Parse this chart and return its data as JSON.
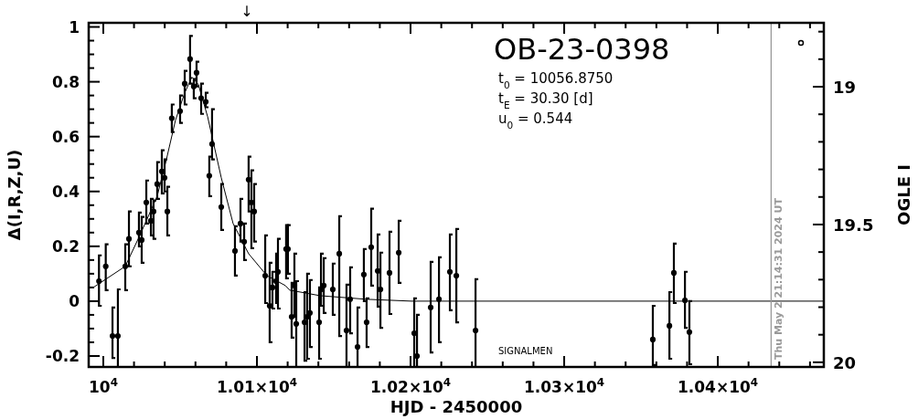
{
  "chart_data": {
    "type": "scatter",
    "title": "OB-23-0398",
    "xlabel": "HJD - 2450000",
    "ylabel": "Δ(I,R,Z,U)",
    "y2label": "OGLE I",
    "xlim": [
      9990.5,
      10469
    ],
    "ylim": [
      -0.24,
      1.015
    ],
    "y2lim": [
      20.017,
      18.768
    ],
    "xticks": [
      {
        "value": 10000,
        "label": "10$^{4}$"
      },
      {
        "value": 10020,
        "label": null
      },
      {
        "value": 10040,
        "label": null
      },
      {
        "value": 10060,
        "label": null
      },
      {
        "value": 10080,
        "label": null
      },
      {
        "value": 10100,
        "label": "1.01×10$^{4}$"
      },
      {
        "value": 10120,
        "label": null
      },
      {
        "value": 10140,
        "label": null
      },
      {
        "value": 10160,
        "label": null
      },
      {
        "value": 10180,
        "label": null
      },
      {
        "value": 10200,
        "label": "1.02×10$^{4}$"
      },
      {
        "value": 10220,
        "label": null
      },
      {
        "value": 10240,
        "label": null
      },
      {
        "value": 10260,
        "label": null
      },
      {
        "value": 10280,
        "label": null
      },
      {
        "value": 10300,
        "label": "1.03×10$^{4}$"
      },
      {
        "value": 10320,
        "label": null
      },
      {
        "value": 10340,
        "label": null
      },
      {
        "value": 10360,
        "label": null
      },
      {
        "value": 10380,
        "label": null
      },
      {
        "value": 10400,
        "label": "1.04×10$^{4}$"
      },
      {
        "value": 10420,
        "label": null
      },
      {
        "value": 10440,
        "label": null
      },
      {
        "value": 10460,
        "label": null
      }
    ],
    "yticks": [
      -0.2,
      {
        "value": -0.15,
        "label": null
      },
      {
        "value": -0.1,
        "label": null
      },
      {
        "value": -0.05,
        "label": null
      },
      0,
      {
        "value": 0.05,
        "label": null
      },
      {
        "value": 0.1,
        "label": null
      },
      {
        "value": 0.15,
        "label": null
      },
      0.2,
      {
        "value": 0.25,
        "label": null
      },
      {
        "value": 0.3,
        "label": null
      },
      {
        "value": 0.35,
        "label": null
      },
      0.4,
      {
        "value": 0.45,
        "label": null
      },
      {
        "value": 0.5,
        "label": null
      },
      {
        "value": 0.55,
        "label": null
      },
      0.6,
      {
        "value": 0.65,
        "label": null
      },
      {
        "value": 0.7,
        "label": null
      },
      {
        "value": 0.75,
        "label": null
      },
      0.8,
      {
        "value": 0.85,
        "label": null
      },
      {
        "value": 0.9,
        "label": null
      },
      {
        "value": 0.95,
        "label": null
      },
      1
    ],
    "y2ticks": [
      {
        "value": 18.8,
        "label": null
      },
      {
        "value": 18.9,
        "label": null
      },
      19,
      {
        "value": 19.1,
        "label": null
      },
      {
        "value": 19.2,
        "label": null
      },
      {
        "value": 19.3,
        "label": null
      },
      {
        "value": 19.4,
        "label": null
      },
      19.5,
      {
        "value": 19.6,
        "label": null
      },
      {
        "value": 19.7,
        "label": null
      },
      {
        "value": 19.8,
        "label": null
      },
      {
        "value": 19.9,
        "label": null
      },
      20
    ],
    "marker": "circle",
    "ref_lines": [
      {
        "axis": "x",
        "value": 10434.7,
        "color": "#999999"
      }
    ],
    "annotations": [
      "t$_{0}$ = 10056.8750",
      "t$_{E}$ = 30.30 [d]",
      "u$_{0}$ = 0.544",
      "SIGNALMEN",
      "↓",
      "Thu May  2 21:14:31 2024 UT"
    ],
    "series": [
      {
        "color": "#000000",
        "x": [
          9997.2,
          10001.6,
          10006.0,
          10009.5,
          10014.3,
          10016.7,
          10023.2,
          10025.0,
          10028.0,
          10031.0,
          10032.7,
          10035.1,
          10038.1,
          10039.9,
          10041.7,
          10044.6,
          10050.0,
          10053.0,
          10056.5,
          10058.9,
          10060.7,
          10063.7,
          10066.7,
          10069.0,
          10070.8,
          10076.8,
          10085.7,
          10089.3,
          10091.7,
          10094.6,
          10096.4,
          10098.2,
          10105.4,
          10108.3,
          10110.1,
          10112.5,
          10113.7,
          10119.0,
          10120.2,
          10122.6,
          10124.4,
          10125.6,
          10131.0,
          10132.7,
          10134.5,
          10140.5,
          10141.7,
          10143.5,
          10149.4,
          10153.6,
          10158.3,
          10160.7,
          10165.5,
          10169.6,
          10171.4,
          10174.4,
          10178.6,
          10180.4,
          10186.3,
          10192.3,
          10202.4,
          10204.2,
          10213.1,
          10218.5,
          10225.6,
          10229.8,
          10242.3,
          10357.7,
          10368.5,
          10371.4,
          10378.6,
          10381.5
        ],
        "values": [
          0.073,
          0.127,
          -0.127,
          -0.127,
          0.127,
          0.227,
          0.25,
          0.223,
          0.36,
          0.293,
          0.327,
          0.427,
          0.473,
          0.45,
          0.327,
          0.667,
          0.693,
          0.793,
          0.883,
          0.783,
          0.833,
          0.74,
          0.727,
          0.457,
          0.573,
          0.343,
          0.183,
          0.283,
          0.217,
          0.443,
          0.36,
          0.327,
          0.093,
          -0.017,
          0.05,
          0.073,
          0.107,
          0.19,
          0.19,
          -0.057,
          0.057,
          -0.083,
          -0.077,
          -0.057,
          -0.043,
          -0.077,
          0.043,
          0.057,
          0.043,
          0.173,
          -0.107,
          0.007,
          -0.167,
          0.097,
          -0.077,
          0.197,
          0.11,
          0.043,
          0.103,
          0.177,
          -0.117,
          -0.2,
          -0.023,
          0.007,
          0.107,
          0.093,
          -0.107,
          -0.14,
          -0.09,
          0.103,
          0.003,
          -0.113
        ],
        "errors": [
          [
            -0.017,
            0.167
          ],
          [
            0.04,
            0.207
          ],
          [
            -0.207,
            -0.023
          ],
          [
            -0.24,
            0.043
          ],
          [
            0.04,
            0.207
          ],
          [
            0.127,
            0.327
          ],
          [
            0.2,
            0.323
          ],
          [
            0.14,
            0.307
          ],
          [
            0.283,
            0.44
          ],
          [
            0.24,
            0.373
          ],
          [
            0.227,
            0.367
          ],
          [
            0.373,
            0.507
          ],
          [
            0.393,
            0.55
          ],
          [
            0.4,
            0.517
          ],
          [
            0.24,
            0.417
          ],
          [
            0.617,
            0.717
          ],
          [
            0.65,
            0.75
          ],
          [
            0.717,
            0.84
          ],
          [
            0.793,
            0.967
          ],
          [
            0.74,
            0.81
          ],
          [
            0.783,
            0.873
          ],
          [
            0.683,
            0.793
          ],
          [
            0.707,
            0.76
          ],
          [
            0.383,
            0.527
          ],
          [
            0.517,
            0.7
          ],
          [
            0.26,
            0.427
          ],
          [
            0.093,
            0.273
          ],
          [
            0.217,
            0.373
          ],
          [
            0.15,
            0.283
          ],
          [
            0.327,
            0.527
          ],
          [
            0.193,
            0.477
          ],
          [
            0.217,
            0.427
          ],
          [
            -0.007,
            0.24
          ],
          [
            -0.15,
            0.14
          ],
          [
            -0.027,
            0.107
          ],
          [
            -0.007,
            0.173
          ],
          [
            -0.027,
            0.227
          ],
          [
            0.083,
            0.277
          ],
          [
            0.1,
            0.277
          ],
          [
            -0.133,
            0.067
          ],
          [
            -0.057,
            0.173
          ],
          [
            -0.24,
            0.073
          ],
          [
            -0.217,
            0.033
          ],
          [
            -0.21,
            0.1
          ],
          [
            -0.167,
            0.077
          ],
          [
            -0.21,
            0.05
          ],
          [
            -0.017,
            0.173
          ],
          [
            -0.043,
            0.157
          ],
          [
            -0.05,
            0.137
          ],
          [
            -0.127,
            0.31
          ],
          [
            -0.24,
            0.06
          ],
          [
            -0.117,
            0.123
          ],
          [
            -0.24,
            -0.023
          ],
          [
            0,
            0.19
          ],
          [
            -0.167,
            0.01
          ],
          [
            0.057,
            0.337
          ],
          [
            -0.02,
            0.243
          ],
          [
            -0.097,
            0.177
          ],
          [
            -0.047,
            0.253
          ],
          [
            0.067,
            0.293
          ],
          [
            -0.24,
            0.01
          ],
          [
            -0.24,
            -0.05
          ],
          [
            -0.187,
            0.143
          ],
          [
            -0.15,
            0.16
          ],
          [
            -0.033,
            0.243
          ],
          [
            -0.077,
            0.263
          ],
          [
            -0.24,
            0.08
          ],
          [
            -0.233,
            -0.017
          ],
          [
            -0.21,
            0.033
          ],
          [
            -0.007,
            0.21
          ],
          [
            -0.097,
            0.107
          ],
          [
            -0.23,
            0
          ]
        ]
      },
      {
        "type": "line",
        "color": "#000000",
        "marker": "none",
        "x": [
          9990.5,
          9993.5,
          10014.3,
          10023.8,
          10035.1,
          10041.1,
          10047,
          10053,
          10057.7,
          10061.9,
          10067.9,
          10076.8,
          10084.5,
          10094.6,
          10106.5,
          10118.5,
          10121.4,
          10141.1,
          10170.8,
          10200.6,
          10469
        ],
        "values": [
          0.05,
          0.05,
          0.127,
          0.24,
          0.383,
          0.517,
          0.66,
          0.76,
          0.817,
          0.79,
          0.673,
          0.45,
          0.283,
          0.173,
          0.093,
          0.057,
          0.04,
          0.02,
          0.007,
          0,
          0
        ]
      }
    ]
  }
}
